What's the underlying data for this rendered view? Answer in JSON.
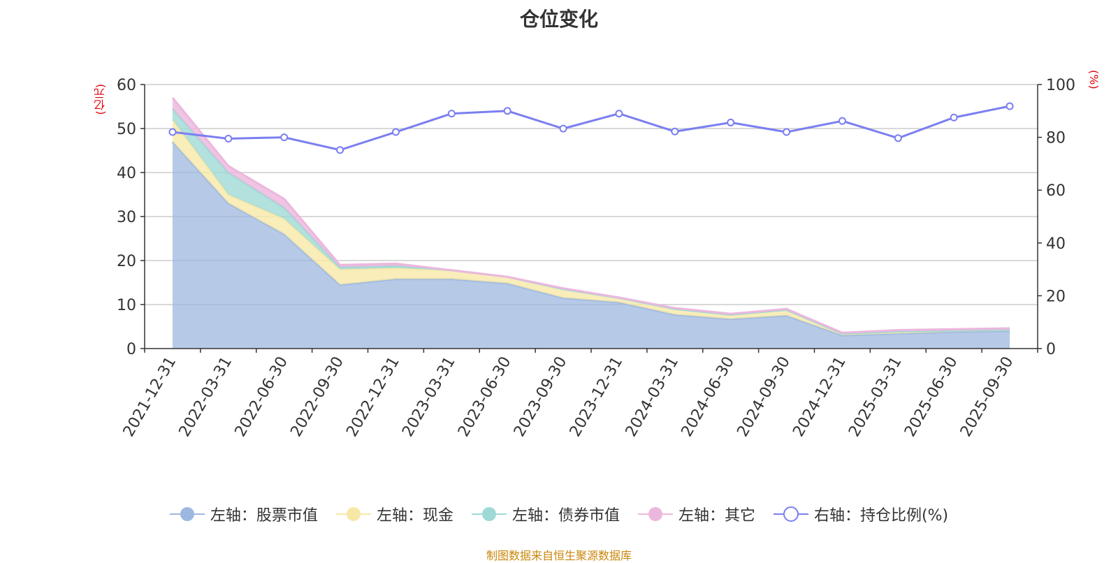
{
  "chart_data": {
    "type": "area",
    "title": "仓位变化",
    "left_unit": "(亿元)",
    "right_unit": "(%)",
    "categories": [
      "2021-12-31",
      "2022-03-31",
      "2022-06-30",
      "2022-09-30",
      "2022-12-31",
      "2023-03-31",
      "2023-06-30",
      "2023-09-30",
      "2023-12-31",
      "2024-03-31",
      "2024-06-30",
      "2024-09-30",
      "2024-12-31",
      "2025-03-31",
      "2025-06-30",
      "2025-09-30"
    ],
    "left_axis": {
      "min": 0,
      "max": 60,
      "ticks": [
        0,
        10,
        20,
        30,
        40,
        50,
        60
      ]
    },
    "right_axis": {
      "min": 0,
      "max": 100,
      "ticks": [
        0,
        20,
        40,
        60,
        80,
        100
      ]
    },
    "stacked_series": [
      {
        "name": "左轴：股票市值",
        "color": "#9db8e0",
        "values": [
          47,
          33,
          26,
          14.5,
          15.8,
          15.8,
          14.8,
          11.5,
          10.5,
          7.7,
          6.7,
          7.5,
          3,
          3.4,
          3.8,
          4
        ]
      },
      {
        "name": "左轴：现金",
        "color": "#f8e8a8",
        "values": [
          5,
          2,
          3.5,
          3.5,
          2.5,
          2,
          1.5,
          2,
          1,
          1.3,
          1,
          1.3,
          0.4,
          0.5,
          0.3,
          0.3
        ]
      },
      {
        "name": "左轴：债券市值",
        "color": "#9fd9d6",
        "values": [
          2.5,
          5,
          2.5,
          0.5,
          0.5,
          0,
          0,
          0,
          0,
          0,
          0,
          0,
          0,
          0,
          0,
          0
        ]
      },
      {
        "name": "左轴：其它",
        "color": "#ecb7dd",
        "values": [
          2.5,
          1.5,
          2,
          0.5,
          0.5,
          0,
          0,
          0.2,
          0.1,
          0.2,
          0.2,
          0.2,
          0.2,
          0.3,
          0.3,
          0.3
        ]
      }
    ],
    "line_series": {
      "name": "右轴：持仓比例(%)",
      "color": "#7b7ff0",
      "values": [
        82,
        79.5,
        80,
        75.2,
        82,
        89,
        90,
        83.3,
        89,
        82.2,
        85.6,
        82,
        86.2,
        79.7,
        87.5,
        91.8
      ]
    },
    "legend_position": "bottom",
    "grid": true
  },
  "footer": "制图数据来自恒生聚源数据库"
}
